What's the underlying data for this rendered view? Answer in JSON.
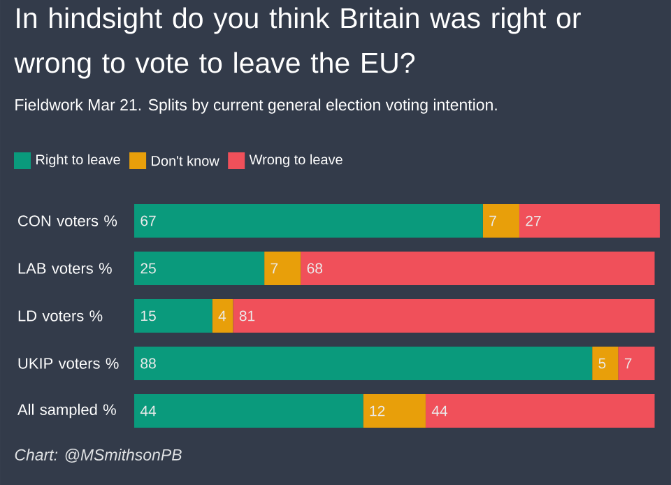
{
  "chart_data": {
    "type": "bar",
    "orientation": "horizontal",
    "stacked": true,
    "data_labels": true,
    "legend": "top left",
    "title": "In hindsight do you think Britain was right or wrong to vote to leave the EU?",
    "subtitle": "Fieldwork Mar 21. Splits by current general election voting intention.",
    "categories": [
      "CON voters %",
      "LAB voters %",
      "LD voters %",
      "UKIP voters %",
      "All sampled %"
    ],
    "series": [
      {
        "name": "Right to leave",
        "color": "#0a9a7c",
        "values": [
          67,
          25,
          15,
          88,
          44
        ]
      },
      {
        "name": "Don't know",
        "color": "#e89f0a",
        "values": [
          7,
          7,
          4,
          5,
          12
        ]
      },
      {
        "name": "Wrong to leave",
        "color": "#f0505a",
        "values": [
          27,
          68,
          81,
          7,
          44
        ]
      }
    ],
    "annotations": [
      "Chart: @MSmithsonPB"
    ]
  }
}
